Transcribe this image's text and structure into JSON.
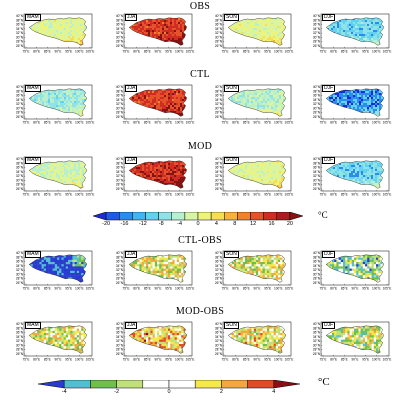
{
  "figure": {
    "axes": {
      "y_ticks": [
        "40°N",
        "38°N",
        "36°N",
        "34°N",
        "32°N",
        "30°N",
        "28°N",
        "26°N"
      ],
      "x_ticks": [
        "75°E",
        "80°E",
        "85°E",
        "90°E",
        "95°E",
        "100°E",
        "105°E"
      ]
    },
    "rows": [
      {
        "title": "OBS",
        "kind": "abs",
        "panels": [
          {
            "season": "MAM",
            "bias": 0.45
          },
          {
            "season": "JJA",
            "bias": 0.85
          },
          {
            "season": "SON",
            "bias": 0.45
          },
          {
            "season": "DJF",
            "bias": 0.22
          }
        ]
      },
      {
        "title": "CTL",
        "kind": "abs",
        "panels": [
          {
            "season": "MAM",
            "bias": 0.3
          },
          {
            "season": "JJA",
            "bias": 0.85
          },
          {
            "season": "SON",
            "bias": 0.35
          },
          {
            "season": "DJF",
            "bias": 0.12
          }
        ]
      },
      {
        "title": "MOD",
        "kind": "abs",
        "panels": [
          {
            "season": "MAM",
            "bias": 0.4
          },
          {
            "season": "JJA",
            "bias": 0.88
          },
          {
            "season": "SON",
            "bias": 0.45
          },
          {
            "season": "DJF",
            "bias": 0.22
          }
        ]
      },
      {
        "title": "CTL-OBS",
        "kind": "diff",
        "panels": [
          {
            "season": "MAM",
            "bias": 0.05
          },
          {
            "season": "JJA",
            "bias": 0.5
          },
          {
            "season": "SON",
            "bias": 0.5
          },
          {
            "season": "DJF",
            "bias": 0.35
          }
        ]
      },
      {
        "title": "MOD-OBS",
        "kind": "diff",
        "panels": [
          {
            "season": "MAM",
            "bias": 0.5
          },
          {
            "season": "JJA",
            "bias": 0.62
          },
          {
            "season": "SON",
            "bias": 0.55
          },
          {
            "season": "DJF",
            "bias": 0.45
          }
        ]
      }
    ],
    "colorbar_abs": {
      "ticks": [
        "-20",
        "-16",
        "-12",
        "-8",
        "-4",
        "0",
        "4",
        "8",
        "12",
        "16",
        "20"
      ],
      "colors": [
        "#1d2bd6",
        "#1f5be8",
        "#2b8cf0",
        "#3fb6f2",
        "#62d2ef",
        "#8fe3e6",
        "#b8efcf",
        "#d7f5a5",
        "#eef47a",
        "#f6de52",
        "#f7b23b",
        "#f0822c",
        "#e4532a",
        "#cf2d24",
        "#ad1a1f",
        "#861313"
      ],
      "unit": "°C"
    },
    "colorbar_diff": {
      "ticks": [
        "-4",
        "-2",
        "0",
        "2",
        "4"
      ],
      "colors": [
        "#2a3bd0",
        "#52bfd0",
        "#6fbf4a",
        "#bfe07a",
        "#ffffff",
        "#ffffff",
        "#f4e84a",
        "#f4a640",
        "#e04a26",
        "#8a0e14"
      ],
      "unit": "°C"
    },
    "map_colors": {
      "abs_scale": [
        "#1d2bd6",
        "#2b8cf0",
        "#62d2ef",
        "#8fe3e6",
        "#b8efcf",
        "#d7f5a5",
        "#eef47a",
        "#f6de52",
        "#f7b23b",
        "#f0822c",
        "#e4532a",
        "#cf2d24",
        "#861313"
      ],
      "diff_scale": [
        "#2a3bd0",
        "#52bfd0",
        "#6fbf4a",
        "#bfe07a",
        "#ffffff",
        "#f4e84a",
        "#f4a640",
        "#e04a26",
        "#8a0e14"
      ]
    }
  }
}
